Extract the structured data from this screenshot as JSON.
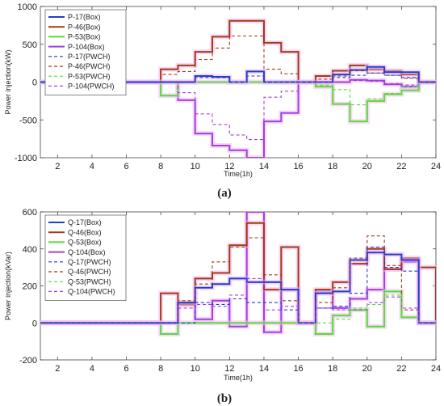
{
  "panels": [
    {
      "caption": "(a)",
      "chart_data": {
        "type": "line",
        "xlabel": "Time(1h)",
        "ylabel": "Power injection(kW)",
        "xlim": [
          1,
          24
        ],
        "ylim": [
          -1000,
          1000
        ],
        "xticks": [
          2,
          4,
          6,
          8,
          10,
          12,
          14,
          16,
          18,
          20,
          22,
          24
        ],
        "yticks": [
          -1000,
          -500,
          0,
          500,
          1000
        ],
        "legend": "top-left",
        "x": [
          1,
          2,
          3,
          4,
          5,
          6,
          7,
          8,
          9,
          10,
          11,
          12,
          13,
          14,
          15,
          16,
          17,
          18,
          19,
          20,
          21,
          22,
          23
        ],
        "series": [
          {
            "name": "P-17(Box)",
            "color": "#1f3fd0",
            "dash": false,
            "values": [
              0,
              0,
              0,
              0,
              0,
              0,
              0,
              0,
              0,
              80,
              70,
              0,
              140,
              0,
              0,
              0,
              0,
              100,
              160,
              200,
              130,
              130,
              0
            ]
          },
          {
            "name": "P-46(Box)",
            "color": "#a33a14",
            "dash": false,
            "values": [
              0,
              0,
              0,
              0,
              0,
              0,
              0,
              170,
              220,
              400,
              600,
              810,
              810,
              520,
              400,
              0,
              80,
              150,
              220,
              170,
              150,
              100,
              0
            ]
          },
          {
            "name": "P-53(Box)",
            "color": "#55dd33",
            "dash": false,
            "values": [
              0,
              0,
              0,
              0,
              0,
              0,
              0,
              -180,
              0,
              0,
              0,
              0,
              0,
              0,
              0,
              0,
              -60,
              -290,
              -520,
              -250,
              -160,
              -110,
              0
            ]
          },
          {
            "name": "P-104(Box)",
            "color": "#a040e0",
            "dash": false,
            "values": [
              0,
              0,
              0,
              0,
              0,
              0,
              0,
              0,
              -240,
              -680,
              -840,
              -900,
              -1000,
              -520,
              -410,
              0,
              0,
              0,
              30,
              20,
              -30,
              -60,
              0
            ]
          },
          {
            "name": "P-17(PWCH)",
            "color": "#1f3fd0",
            "dash": true,
            "values": [
              0,
              0,
              0,
              0,
              0,
              0,
              0,
              0,
              0,
              60,
              60,
              0,
              80,
              0,
              0,
              0,
              0,
              60,
              90,
              120,
              90,
              60,
              0
            ]
          },
          {
            "name": "P-46(PWCH)",
            "color": "#a33a14",
            "dash": true,
            "values": [
              0,
              0,
              0,
              0,
              0,
              0,
              0,
              100,
              140,
              300,
              450,
              610,
              610,
              170,
              110,
              0,
              40,
              80,
              150,
              120,
              90,
              50,
              0
            ]
          },
          {
            "name": "P-53(PWCH)",
            "color": "#55dd33",
            "dash": true,
            "values": [
              0,
              0,
              0,
              0,
              0,
              0,
              0,
              0,
              0,
              0,
              0,
              0,
              0,
              0,
              0,
              0,
              -40,
              -100,
              -300,
              -220,
              -150,
              -60,
              0
            ]
          },
          {
            "name": "P-104(PWCH)",
            "color": "#a040e0",
            "dash": true,
            "values": [
              0,
              0,
              0,
              0,
              0,
              0,
              0,
              0,
              -140,
              -420,
              -560,
              -700,
              -760,
              -200,
              -120,
              0,
              0,
              0,
              20,
              10,
              -20,
              -40,
              0
            ]
          }
        ]
      }
    },
    {
      "caption": "(b)",
      "chart_data": {
        "type": "line",
        "xlabel": "Time(1h)",
        "ylabel": "Power injection(kVar)",
        "xlim": [
          1,
          24
        ],
        "ylim": [
          -200,
          600
        ],
        "xticks": [
          2,
          4,
          6,
          8,
          10,
          12,
          14,
          16,
          18,
          20,
          22,
          24
        ],
        "yticks": [
          -200,
          0,
          200,
          400,
          600
        ],
        "legend": "top-left",
        "x": [
          1,
          2,
          3,
          4,
          5,
          6,
          7,
          8,
          9,
          10,
          11,
          12,
          13,
          14,
          15,
          16,
          17,
          18,
          19,
          20,
          21,
          22,
          23
        ],
        "series": [
          {
            "name": "Q-17(Box)",
            "color": "#1f3fd0",
            "dash": false,
            "values": [
              0,
              0,
              0,
              0,
              0,
              0,
              0,
              0,
              110,
              190,
              210,
              240,
              220,
              220,
              180,
              0,
              160,
              170,
              340,
              380,
              370,
              340,
              0
            ]
          },
          {
            "name": "Q-46(Box)",
            "color": "#a33a14",
            "dash": false,
            "values": [
              0,
              0,
              0,
              0,
              0,
              0,
              0,
              160,
              100,
              240,
              270,
              420,
              540,
              180,
              410,
              0,
              180,
              220,
              320,
              400,
              290,
              350,
              300
            ]
          },
          {
            "name": "Q-53(Box)",
            "color": "#55dd33",
            "dash": false,
            "values": [
              0,
              0,
              0,
              0,
              0,
              0,
              0,
              -60,
              0,
              0,
              0,
              0,
              0,
              0,
              0,
              0,
              -60,
              40,
              70,
              -20,
              170,
              30,
              0
            ]
          },
          {
            "name": "Q-104(Box)",
            "color": "#a040e0",
            "dash": false,
            "values": [
              0,
              0,
              0,
              0,
              0,
              0,
              0,
              0,
              100,
              20,
              120,
              -20,
              600,
              -50,
              180,
              0,
              170,
              80,
              130,
              180,
              290,
              330,
              0
            ]
          },
          {
            "name": "Q-17(PWCH)",
            "color": "#1f3fd0",
            "dash": true,
            "values": [
              0,
              0,
              0,
              0,
              0,
              0,
              0,
              0,
              0,
              110,
              100,
              130,
              110,
              110,
              70,
              0,
              80,
              90,
              160,
              410,
              300,
              280,
              0
            ]
          },
          {
            "name": "Q-46(PWCH)",
            "color": "#a33a14",
            "dash": true,
            "values": [
              0,
              0,
              0,
              0,
              0,
              0,
              0,
              0,
              120,
              210,
              330,
              410,
              460,
              260,
              120,
              0,
              110,
              190,
              350,
              470,
              310,
              70,
              0
            ]
          },
          {
            "name": "Q-53(PWCH)",
            "color": "#55dd33",
            "dash": true,
            "values": [
              0,
              0,
              0,
              0,
              0,
              0,
              0,
              0,
              0,
              0,
              0,
              0,
              0,
              0,
              0,
              0,
              0,
              20,
              80,
              100,
              150,
              30,
              0
            ]
          },
          {
            "name": "Q-104(PWCH)",
            "color": "#a040e0",
            "dash": true,
            "values": [
              0,
              0,
              0,
              0,
              0,
              0,
              0,
              0,
              80,
              100,
              90,
              150,
              240,
              70,
              90,
              0,
              80,
              70,
              70,
              110,
              140,
              80,
              0
            ]
          }
        ]
      }
    }
  ]
}
